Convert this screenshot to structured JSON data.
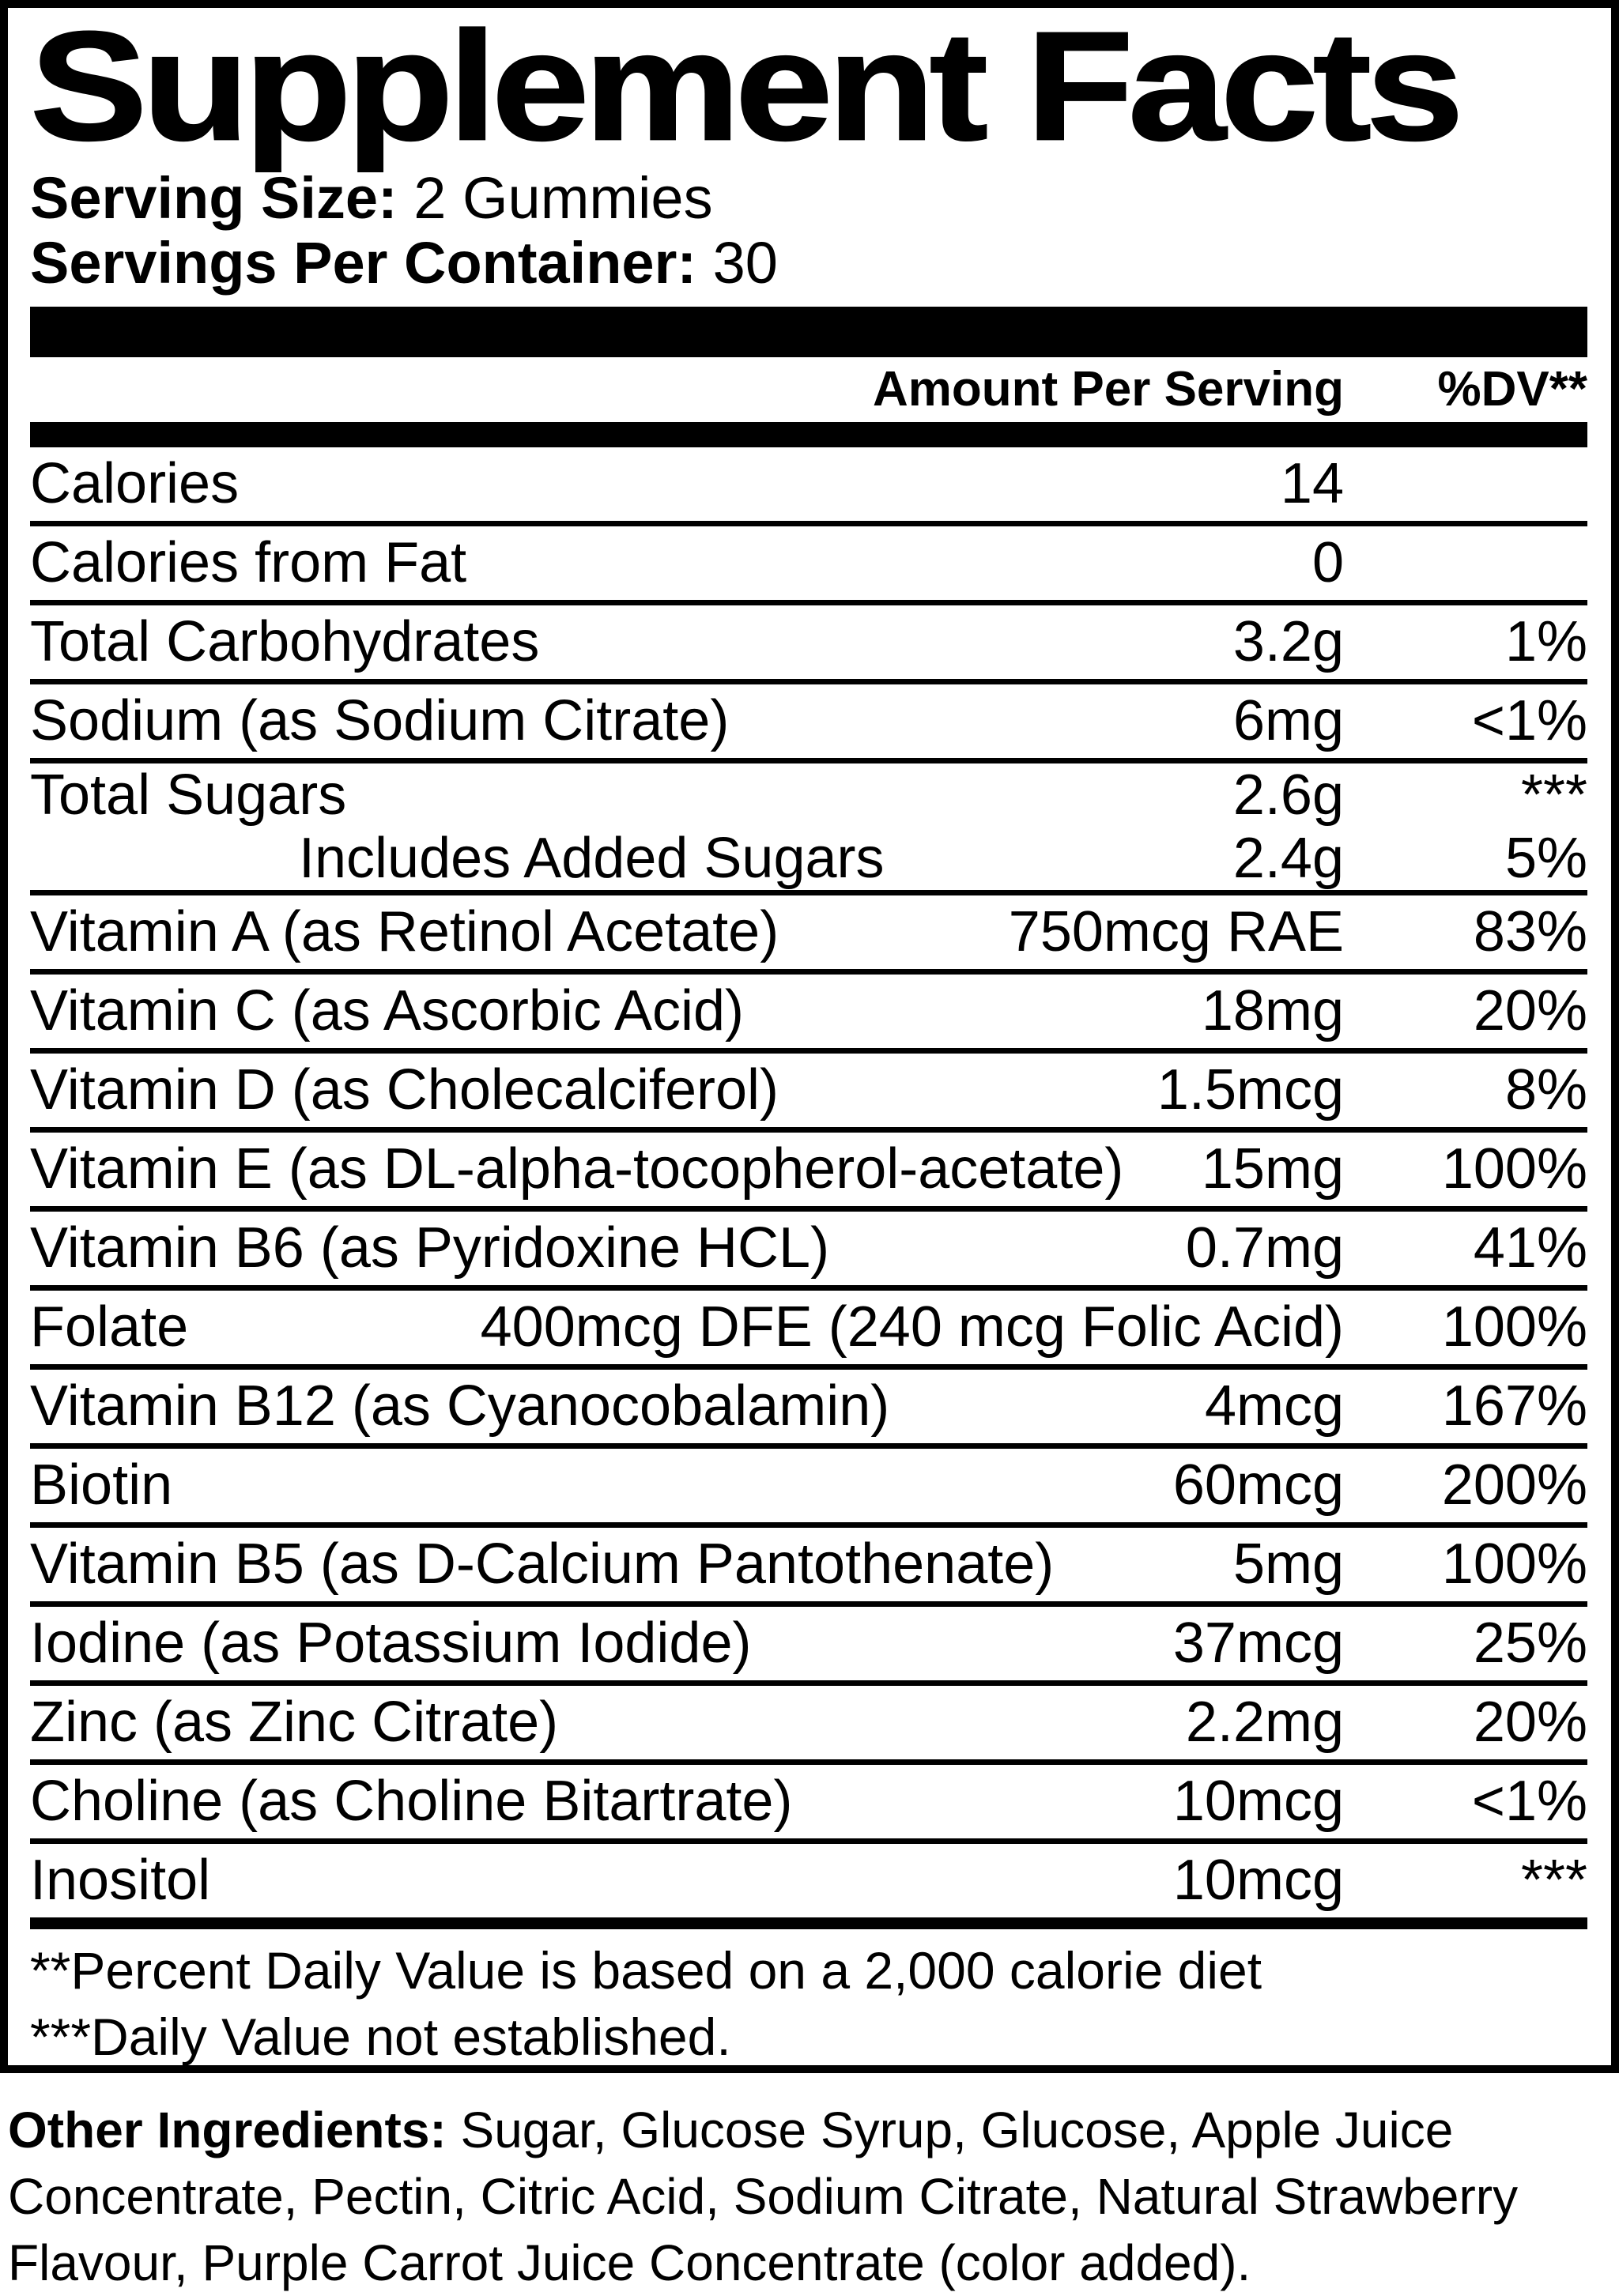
{
  "title": "Supplement Facts",
  "serving": {
    "size_label": "Serving Size:",
    "size_value": " 2 Gummies",
    "per_container_label": "Servings Per Container:",
    "per_container_value": " 30"
  },
  "header": {
    "amount": "Amount Per Serving",
    "dv": "%DV**"
  },
  "rows": [
    {
      "label": "Calories",
      "amount": "14",
      "dv": ""
    },
    {
      "label": "Calories from Fat",
      "amount": "0",
      "dv": ""
    },
    {
      "label": "Total Carbohydrates",
      "amount": "3.2g",
      "dv": "1%"
    },
    {
      "label": "Sodium (as Sodium Citrate)",
      "amount": "6mg",
      "dv": "<1%"
    },
    {
      "label": "Total Sugars",
      "amount": "2.6g",
      "dv": "***",
      "no_sep": true,
      "short": true
    },
    {
      "label": "Includes Added Sugars",
      "amount": "2.4g",
      "dv": "5%",
      "sub": true,
      "short": true
    },
    {
      "label": "Vitamin A (as Retinol Acetate)",
      "amount": "750mcg RAE",
      "dv": "83%"
    },
    {
      "label": "Vitamin C (as Ascorbic Acid)",
      "amount": "18mg",
      "dv": "20%"
    },
    {
      "label": "Vitamin D (as Cholecalciferol)",
      "amount": "1.5mcg",
      "dv": "8%"
    },
    {
      "label": "Vitamin E (as DL-alpha-tocopherol-acetate)",
      "amount": "15mg",
      "dv": "100%"
    },
    {
      "label": "Vitamin B6 (as Pyridoxine HCL)",
      "amount": "0.7mg",
      "dv": "41%"
    },
    {
      "label": "Folate",
      "amount": "400mcg DFE (240 mcg Folic Acid)",
      "dv": "100%"
    },
    {
      "label": "Vitamin B12 (as Cyanocobalamin)",
      "amount": "4mcg",
      "dv": "167%"
    },
    {
      "label": "Biotin",
      "amount": "60mcg",
      "dv": "200%"
    },
    {
      "label": "Vitamin B5 (as D-Calcium Pantothenate)",
      "amount": "5mg",
      "dv": "100%"
    },
    {
      "label": "Iodine (as Potassium Iodide)",
      "amount": "37mcg",
      "dv": "25%"
    },
    {
      "label": "Zinc (as Zinc Citrate)",
      "amount": "2.2mg",
      "dv": "20%"
    },
    {
      "label": "Choline (as Choline Bitartrate)",
      "amount": "10mcg",
      "dv": "<1%"
    },
    {
      "label": "Inositol",
      "amount": "10mcg",
      "dv": "***",
      "no_sep": true
    }
  ],
  "footnotes": {
    "line1": "**Percent Daily Value is based on a 2,000 calorie diet",
    "line2": "***Daily Value not established."
  },
  "other_ingredients": {
    "label": "Other Ingredients:",
    "text": " Sugar, Glucose Syrup, Glucose, Apple Juice\nConcentrate, Pectin, Citric Acid, Sodium Citrate, Natural Strawberry\nFlavour, Purple Carrot Juice Concentrate (color added)."
  },
  "colors": {
    "ink": "#000000",
    "background": "#ffffff"
  }
}
